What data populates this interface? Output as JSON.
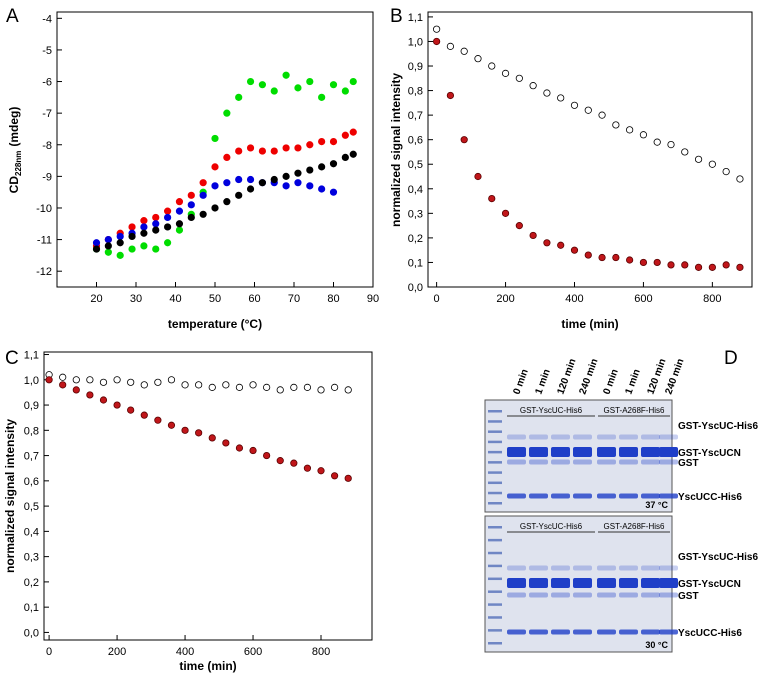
{
  "chart_data": [
    {
      "type": "scatter",
      "panel_label": "A",
      "xlabel": "temperature (°C)",
      "ylabel": "CD",
      "ylabel_sub": "228nm",
      "ylabel_unit": "(mdeg)",
      "xlim": [
        10,
        90
      ],
      "ylim": [
        -12.5,
        -3.8
      ],
      "xticks": [
        20,
        30,
        40,
        50,
        60,
        70,
        80,
        90
      ],
      "yticks": [
        -12,
        -11,
        -10,
        -9,
        -8,
        -7,
        -6,
        -5,
        -4
      ],
      "x": [
        20,
        23,
        26,
        29,
        32,
        35,
        38,
        41,
        44,
        47,
        50,
        53,
        56,
        59,
        62,
        65,
        68,
        71,
        74,
        77,
        80,
        83,
        85
      ],
      "series": [
        {
          "color": "#00dd00",
          "filled": true,
          "values": [
            -11.3,
            -11.4,
            -11.5,
            -11.3,
            -11.2,
            -11.3,
            -11.1,
            -10.7,
            -10.2,
            -9.5,
            -7.8,
            -7.0,
            -6.5,
            -6.0,
            -6.1,
            -6.3,
            -5.8,
            -6.2,
            -6.0,
            -6.5,
            -6.1,
            -6.3,
            -6.0
          ]
        },
        {
          "color": "#ee0000",
          "filled": true,
          "values": [
            -11.2,
            -11.0,
            -10.8,
            -10.6,
            -10.4,
            -10.3,
            -10.1,
            -9.8,
            -9.6,
            -9.2,
            -8.7,
            -8.4,
            -8.2,
            -8.1,
            -8.2,
            -8.2,
            -8.1,
            -8.1,
            -8.0,
            -7.9,
            -7.9,
            -7.7,
            -7.6
          ]
        },
        {
          "color": "#0000dd",
          "filled": true,
          "values": [
            -11.1,
            -11.0,
            -10.9,
            -10.8,
            -10.6,
            -10.5,
            -10.3,
            -10.1,
            -9.9,
            -9.6,
            -9.3,
            -9.2,
            -9.1,
            -9.1,
            -9.2,
            -9.2,
            -9.3,
            -9.2,
            -9.3,
            -9.4,
            -9.5,
            null,
            null
          ]
        },
        {
          "color": "#000000",
          "filled": true,
          "values": [
            -11.3,
            -11.2,
            -11.1,
            -10.9,
            -10.8,
            -10.7,
            -10.6,
            -10.5,
            -10.3,
            -10.2,
            -10.0,
            -9.8,
            -9.6,
            -9.4,
            -9.2,
            -9.1,
            -9.0,
            -8.9,
            -8.8,
            -8.7,
            -8.6,
            -8.4,
            -8.3
          ]
        }
      ]
    },
    {
      "type": "scatter",
      "panel_label": "B",
      "xlabel": "time (min)",
      "ylabel": "normalized signal intensity",
      "xlim": [
        -25,
        915
      ],
      "ylim": [
        0,
        1.12
      ],
      "xticks": [
        0,
        200,
        400,
        600,
        800
      ],
      "yticks": [
        {
          "value": 0.0,
          "label": "0,0"
        },
        {
          "value": 0.1,
          "label": "0,1"
        },
        {
          "value": 0.2,
          "label": "0,2"
        },
        {
          "value": 0.3,
          "label": "0,3"
        },
        {
          "value": 0.4,
          "label": "0,4"
        },
        {
          "value": 0.5,
          "label": "0,5"
        },
        {
          "value": 0.6,
          "label": "0,6"
        },
        {
          "value": 0.7,
          "label": "0,7"
        },
        {
          "value": 0.8,
          "label": "0,8"
        },
        {
          "value": 0.9,
          "label": "0,9"
        },
        {
          "value": 1.0,
          "label": "1,0"
        },
        {
          "value": 1.1,
          "label": "1,1"
        }
      ],
      "x": [
        0,
        40,
        80,
        120,
        160,
        200,
        240,
        280,
        320,
        360,
        400,
        440,
        480,
        520,
        560,
        600,
        640,
        680,
        720,
        760,
        800,
        840,
        880
      ],
      "series": [
        {
          "color": "#000000",
          "filled": false,
          "values": [
            1.05,
            0.98,
            0.96,
            0.93,
            0.9,
            0.87,
            0.85,
            0.82,
            0.79,
            0.77,
            0.74,
            0.72,
            0.7,
            0.66,
            0.64,
            0.62,
            0.59,
            0.58,
            0.55,
            0.52,
            0.5,
            0.47,
            0.44
          ]
        },
        {
          "color": "#c0161a",
          "filled": true,
          "values": [
            1.0,
            0.78,
            0.6,
            0.45,
            0.36,
            0.3,
            0.25,
            0.21,
            0.18,
            0.17,
            0.15,
            0.13,
            0.12,
            0.12,
            0.11,
            0.1,
            0.1,
            0.09,
            0.09,
            0.08,
            0.08,
            0.09,
            0.08
          ]
        }
      ]
    },
    {
      "type": "scatter",
      "panel_label": "C",
      "xlabel": "time (min)",
      "ylabel": "normalized signal intensity",
      "xlim": [
        -15,
        950
      ],
      "ylim": [
        -0.03,
        1.11
      ],
      "xticks": [
        0,
        200,
        400,
        600,
        800
      ],
      "yticks": [
        {
          "value": 0.0,
          "label": "0,0"
        },
        {
          "value": 0.1,
          "label": "0,1"
        },
        {
          "value": 0.2,
          "label": "0,2"
        },
        {
          "value": 0.3,
          "label": "0,3"
        },
        {
          "value": 0.4,
          "label": "0,4"
        },
        {
          "value": 0.5,
          "label": "0,5"
        },
        {
          "value": 0.6,
          "label": "0,6"
        },
        {
          "value": 0.7,
          "label": "0,7"
        },
        {
          "value": 0.8,
          "label": "0,8"
        },
        {
          "value": 0.9,
          "label": "0,9"
        },
        {
          "value": 1.0,
          "label": "1,0"
        },
        {
          "value": 1.1,
          "label": "1,1"
        }
      ],
      "x": [
        0,
        40,
        80,
        120,
        160,
        200,
        240,
        280,
        320,
        360,
        400,
        440,
        480,
        520,
        560,
        600,
        640,
        680,
        720,
        760,
        800,
        840,
        880
      ],
      "series": [
        {
          "color": "#000000",
          "filled": false,
          "values": [
            1.02,
            1.01,
            1.0,
            1.0,
            0.99,
            1.0,
            0.99,
            0.98,
            0.99,
            1.0,
            0.98,
            0.98,
            0.97,
            0.98,
            0.97,
            0.98,
            0.97,
            0.96,
            0.97,
            0.97,
            0.96,
            0.97,
            0.96
          ]
        },
        {
          "color": "#c0161a",
          "filled": true,
          "values": [
            1.0,
            0.98,
            0.96,
            0.94,
            0.92,
            0.9,
            0.88,
            0.86,
            0.84,
            0.82,
            0.8,
            0.79,
            0.77,
            0.75,
            0.73,
            0.72,
            0.7,
            0.68,
            0.67,
            0.65,
            0.64,
            0.62,
            0.61
          ]
        }
      ]
    }
  ],
  "gel": {
    "panel_label": "D",
    "lanes": [
      "0 min",
      "1 min",
      "120 min",
      "240 min",
      "0 min",
      "1 min",
      "120 min",
      "240 min"
    ],
    "groups_top": [
      "GST-YscUC-His6",
      "GST-A268F-His6"
    ],
    "groups_bottom": [
      "GST-YscUC-His6",
      "GST-A268F-His6"
    ],
    "bands_top": [
      "GST-YscUC-His6",
      "GST-YscUCN",
      "GST",
      "YscUCC-His6"
    ],
    "bands_bottom": [
      "GST-YscUC-His6",
      "GST-YscUCN",
      "GST",
      "YscUCC-His6"
    ],
    "temp_top": "37 °C",
    "temp_bottom": "30 °C"
  }
}
